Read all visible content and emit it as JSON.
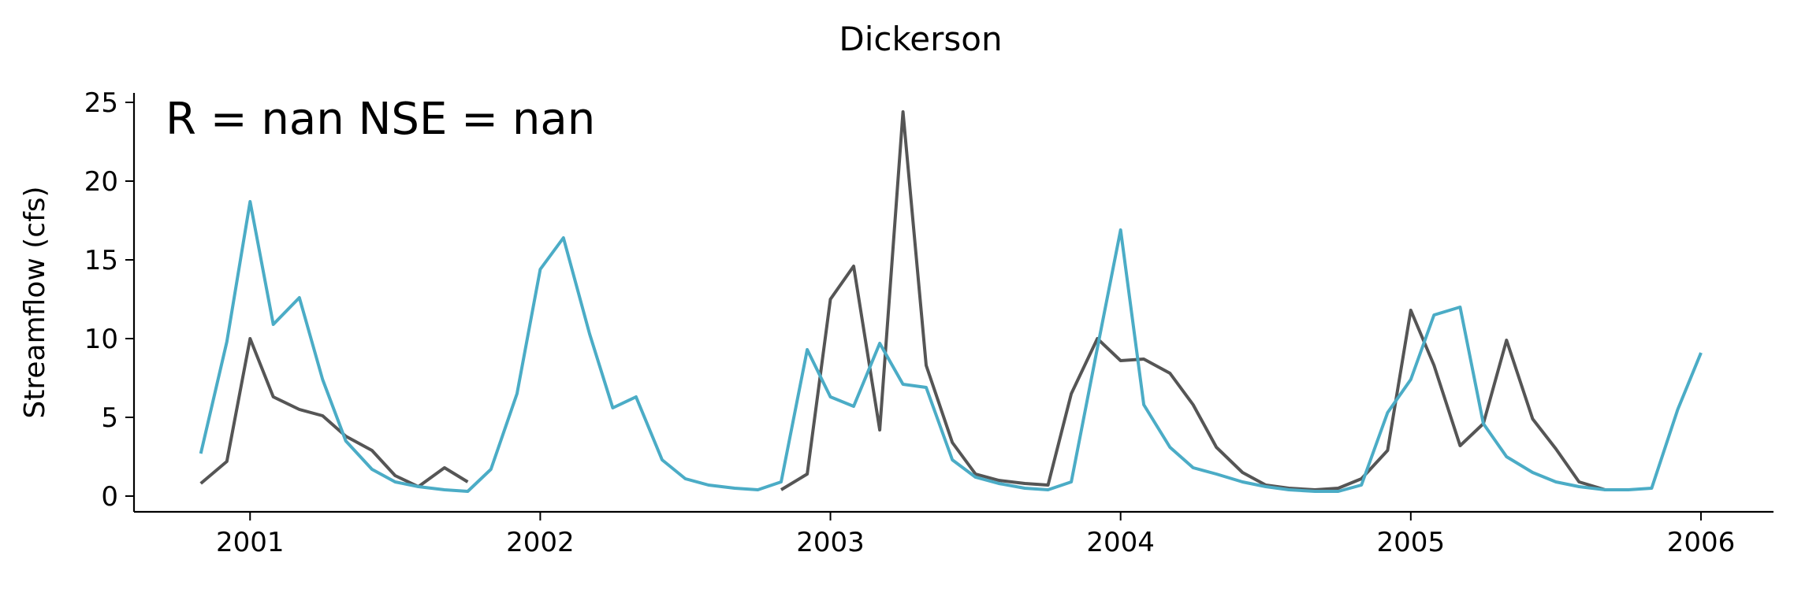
{
  "chart_data": {
    "type": "line",
    "title": "Dickerson",
    "annotation": "R = nan  NSE = nan",
    "xlabel": "",
    "ylabel": "Streamflow (cfs)",
    "xlim": [
      2000.6,
      2006.25
    ],
    "ylim": [
      -1,
      25.6
    ],
    "x_ticks": [
      2001,
      2002,
      2003,
      2004,
      2005,
      2006
    ],
    "y_ticks": [
      0,
      5,
      10,
      15,
      20,
      25
    ],
    "grid": false,
    "legend": "none",
    "series": [
      {
        "color": "#555555",
        "segments": [
          {
            "x": [
              2000.83,
              2000.92,
              2001.0,
              2001.08,
              2001.17,
              2001.25,
              2001.33,
              2001.42,
              2001.5,
              2001.58,
              2001.67,
              2001.75
            ],
            "y": [
              0.8,
              2.2,
              10.0,
              6.3,
              5.5,
              5.1,
              3.8,
              2.9,
              1.3,
              0.6,
              1.8,
              0.9
            ]
          },
          {
            "x": [
              2002.83,
              2002.92,
              2003.0,
              2003.08,
              2003.17,
              2003.25,
              2003.33,
              2003.42,
              2003.5,
              2003.58,
              2003.67,
              2003.75,
              2003.83,
              2003.92,
              2004.0,
              2004.08,
              2004.17,
              2004.25,
              2004.33,
              2004.42,
              2004.5,
              2004.58,
              2004.67,
              2004.75,
              2004.83,
              2004.92,
              2005.0,
              2005.08,
              2005.17,
              2005.25,
              2005.33,
              2005.42,
              2005.5,
              2005.58,
              2005.67,
              2005.75
            ],
            "y": [
              0.4,
              1.4,
              12.5,
              14.6,
              4.2,
              24.4,
              8.3,
              3.4,
              1.4,
              1.0,
              0.8,
              0.7,
              6.5,
              10.0,
              8.6,
              8.7,
              7.8,
              5.8,
              3.1,
              1.5,
              0.7,
              0.5,
              0.4,
              0.5,
              1.1,
              2.9,
              11.8,
              8.3,
              3.2,
              4.6,
              9.9,
              4.9,
              3.0,
              0.9,
              0.4,
              0.4
            ]
          }
        ]
      },
      {
        "color": "#4bacc6",
        "segments": [
          {
            "x": [
              2000.83,
              2000.92,
              2001.0,
              2001.08,
              2001.17,
              2001.25,
              2001.33,
              2001.42,
              2001.5,
              2001.58,
              2001.67,
              2001.75,
              2001.83,
              2001.92,
              2002.0,
              2002.08,
              2002.17,
              2002.25,
              2002.33,
              2002.42,
              2002.5,
              2002.58,
              2002.67,
              2002.75,
              2002.83,
              2002.92,
              2003.0,
              2003.08,
              2003.17,
              2003.25,
              2003.33,
              2003.42,
              2003.5,
              2003.58,
              2003.67,
              2003.75,
              2003.83,
              2003.92,
              2004.0,
              2004.08,
              2004.17,
              2004.25,
              2004.33,
              2004.42,
              2004.5,
              2004.58,
              2004.67,
              2004.75,
              2004.83,
              2004.92,
              2005.0,
              2005.08,
              2005.17,
              2005.25,
              2005.33,
              2005.42,
              2005.5,
              2005.58,
              2005.67,
              2005.75,
              2005.83,
              2005.92,
              2006.0
            ],
            "y": [
              2.7,
              9.8,
              18.7,
              10.9,
              12.6,
              7.4,
              3.5,
              1.7,
              0.9,
              0.6,
              0.4,
              0.3,
              1.7,
              6.5,
              14.4,
              16.4,
              10.3,
              5.6,
              6.3,
              2.3,
              1.1,
              0.7,
              0.5,
              0.4,
              0.9,
              9.3,
              6.3,
              5.7,
              9.7,
              7.1,
              6.9,
              2.3,
              1.2,
              0.8,
              0.5,
              0.4,
              0.9,
              9.4,
              16.9,
              5.8,
              3.1,
              1.8,
              1.4,
              0.9,
              0.6,
              0.4,
              0.3,
              0.3,
              0.7,
              5.3,
              7.4,
              11.5,
              12.0,
              4.6,
              2.5,
              1.5,
              0.9,
              0.6,
              0.4,
              0.4,
              0.5,
              5.5,
              9.1
            ]
          }
        ]
      }
    ]
  }
}
